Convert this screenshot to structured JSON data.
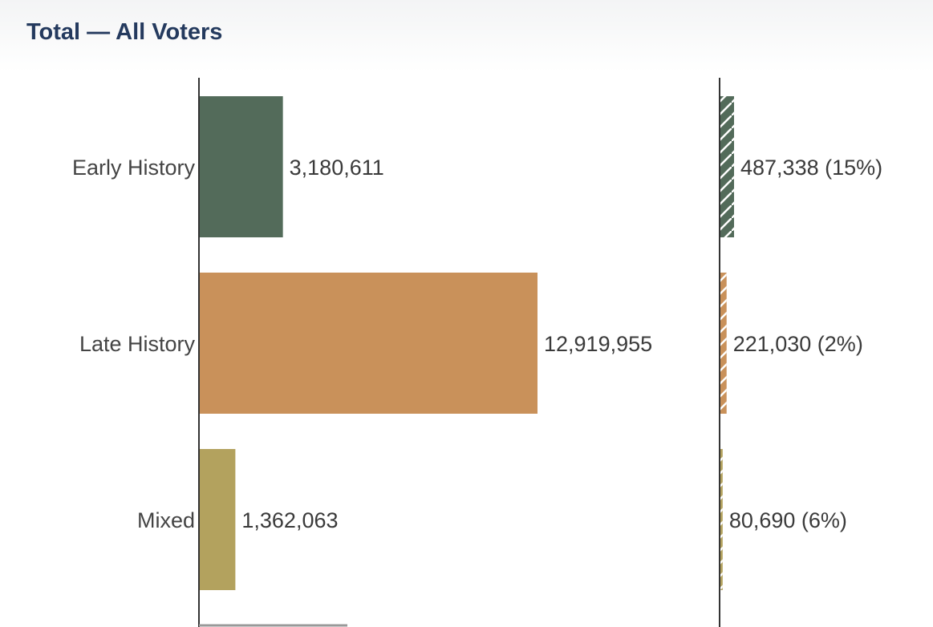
{
  "title": "Total — All Voters",
  "chart_data": {
    "type": "bar",
    "orientation": "horizontal",
    "title": "Total — All Voters",
    "categories": [
      "Early History",
      "Late History",
      "Mixed"
    ],
    "colors": [
      "#536b5a",
      "#c9915a",
      "#b3a25e"
    ],
    "series": [
      {
        "values": [
          3180611,
          12919955,
          1362063
        ],
        "labels": [
          "3,180,611",
          "12,919,955",
          "1,362,063"
        ]
      },
      {
        "values": [
          487338,
          221030,
          80690
        ],
        "percent": [
          15,
          2,
          6
        ],
        "labels": [
          "487,338 (15%)",
          "221,030 (2%)",
          "80,690 (6%)"
        ],
        "pattern": "hatched"
      }
    ],
    "grid": false,
    "legend": "none"
  }
}
